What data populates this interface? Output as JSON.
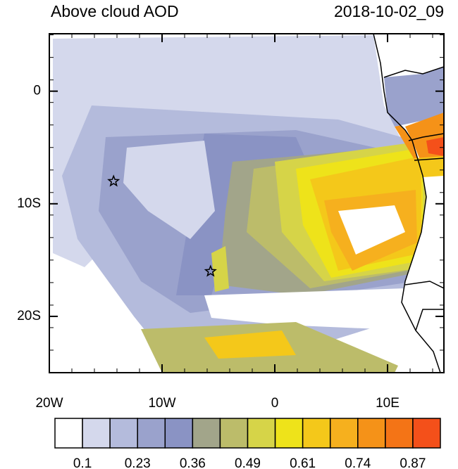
{
  "map": {
    "title": "Above cloud AOD",
    "timestamp": "2018-10-02_09",
    "lon_range": [
      -20,
      15
    ],
    "lat_range": [
      5.1,
      -25
    ],
    "lon_ticks": [
      {
        "value": -20,
        "label": "20W"
      },
      {
        "value": -10,
        "label": "10W"
      },
      {
        "value": 0,
        "label": "0"
      },
      {
        "value": 10,
        "label": "10E"
      }
    ],
    "lat_ticks": [
      {
        "value": 0,
        "label": "0"
      },
      {
        "value": -10,
        "label": "10S"
      },
      {
        "value": -20,
        "label": "20S"
      }
    ],
    "colorbar": {
      "colors": [
        "#ffffff",
        "#d4d8ec",
        "#b4bbdc",
        "#9aa2cc",
        "#8a93c4",
        "#a2a58a",
        "#bcbc6a",
        "#d6d448",
        "#eee31a",
        "#f4c81a",
        "#f6b01e",
        "#f59218",
        "#f47416",
        "#f4501a"
      ],
      "labels": [
        0.1,
        0.23,
        0.36,
        0.49,
        0.61,
        0.74,
        0.87
      ]
    },
    "markers": [
      {
        "lon": -14.3,
        "lat": -8
      },
      {
        "lon": -5.7,
        "lat": -16
      }
    ]
  }
}
